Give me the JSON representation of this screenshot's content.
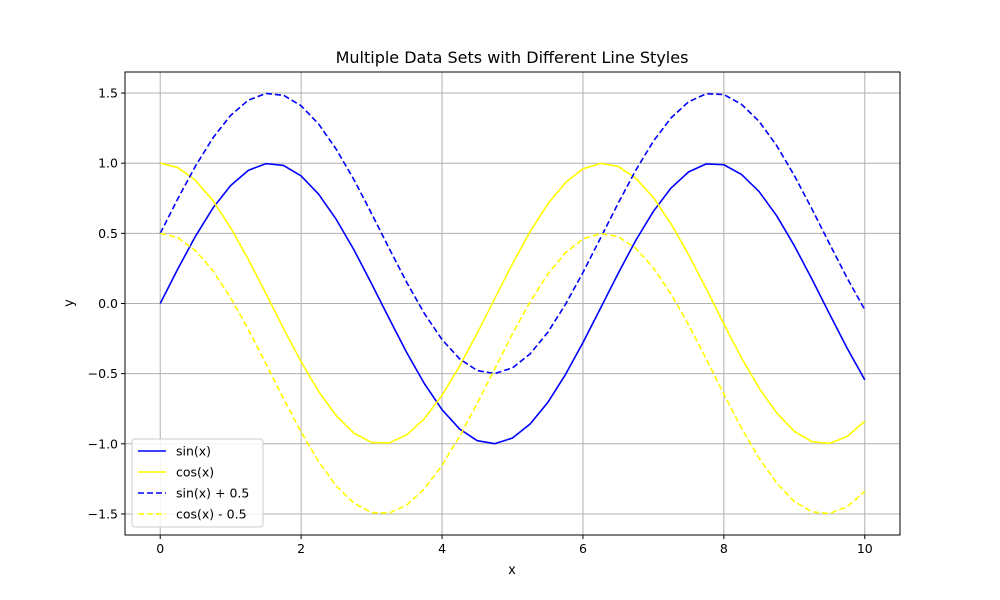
{
  "chart_data": {
    "type": "line",
    "title": "Multiple Data Sets with Different Line Styles",
    "xlabel": "x",
    "ylabel": "y",
    "xlim": [
      -0.5,
      10.5
    ],
    "ylim": [
      -1.65,
      1.65
    ],
    "xticks": [
      0,
      2,
      4,
      6,
      8,
      10
    ],
    "xtick_labels": [
      "0",
      "2",
      "4",
      "6",
      "8",
      "10"
    ],
    "yticks": [
      -1.5,
      -1.0,
      -0.5,
      0.0,
      0.5,
      1.0,
      1.5
    ],
    "ytick_labels": [
      "−1.5",
      "−1.0",
      "−0.5",
      "0.0",
      "0.5",
      "1.0",
      "1.5"
    ],
    "grid": true,
    "legend_position": "lower-left",
    "x": [
      0,
      0.25,
      0.5,
      0.75,
      1,
      1.25,
      1.5,
      1.75,
      2,
      2.25,
      2.5,
      2.75,
      3,
      3.25,
      3.5,
      3.75,
      4,
      4.25,
      4.5,
      4.75,
      5,
      5.25,
      5.5,
      5.75,
      6,
      6.25,
      6.5,
      6.75,
      7,
      7.25,
      7.5,
      7.75,
      8,
      8.25,
      8.5,
      8.75,
      9,
      9.25,
      9.5,
      9.75,
      10
    ],
    "series": [
      {
        "name": "sin(x)",
        "color": "#0000ff",
        "dash": "solid",
        "values": [
          0.0,
          0.247,
          0.479,
          0.682,
          0.841,
          0.949,
          0.997,
          0.984,
          0.909,
          0.778,
          0.598,
          0.382,
          0.141,
          -0.108,
          -0.351,
          -0.572,
          -0.757,
          -0.895,
          -0.978,
          -0.999,
          -0.959,
          -0.859,
          -0.706,
          -0.508,
          -0.279,
          -0.033,
          0.215,
          0.45,
          0.657,
          0.823,
          0.938,
          0.995,
          0.989,
          0.92,
          0.798,
          0.625,
          0.412,
          0.174,
          -0.075,
          -0.319,
          -0.544
        ]
      },
      {
        "name": "cos(x)",
        "color": "#ffff00",
        "dash": "solid",
        "values": [
          1.0,
          0.969,
          0.878,
          0.732,
          0.54,
          0.315,
          0.071,
          -0.178,
          -0.416,
          -0.628,
          -0.801,
          -0.924,
          -0.99,
          -0.994,
          -0.936,
          -0.82,
          -0.654,
          -0.446,
          -0.211,
          0.037,
          0.284,
          0.512,
          0.709,
          0.861,
          0.96,
          0.999,
          0.977,
          0.893,
          0.754,
          0.568,
          0.347,
          0.105,
          -0.146,
          -0.388,
          -0.602,
          -0.78,
          -0.911,
          -0.985,
          -0.997,
          -0.948,
          -0.839
        ]
      },
      {
        "name": "sin(x) + 0.5",
        "color": "#0000ff",
        "dash": "dashed",
        "values": [
          0.5,
          0.747,
          0.979,
          1.182,
          1.341,
          1.449,
          1.497,
          1.484,
          1.409,
          1.278,
          1.098,
          0.882,
          0.641,
          0.392,
          0.149,
          -0.072,
          -0.257,
          -0.395,
          -0.478,
          -0.499,
          -0.459,
          -0.359,
          -0.206,
          -0.008,
          0.221,
          0.467,
          0.715,
          0.95,
          1.157,
          1.323,
          1.438,
          1.495,
          1.489,
          1.42,
          1.298,
          1.125,
          0.912,
          0.674,
          0.425,
          0.181,
          -0.044
        ]
      },
      {
        "name": "cos(x) - 0.5",
        "color": "#ffff00",
        "dash": "dashed",
        "values": [
          0.5,
          0.469,
          0.378,
          0.232,
          0.04,
          -0.185,
          -0.429,
          -0.678,
          -0.916,
          -1.128,
          -1.301,
          -1.424,
          -1.49,
          -1.494,
          -1.436,
          -1.32,
          -1.154,
          -0.946,
          -0.711,
          -0.463,
          -0.216,
          0.012,
          0.209,
          0.361,
          0.46,
          0.499,
          0.477,
          0.393,
          0.254,
          0.068,
          -0.153,
          -0.395,
          -0.646,
          -0.888,
          -1.102,
          -1.28,
          -1.411,
          -1.485,
          -1.497,
          -1.448,
          -1.339
        ]
      }
    ]
  }
}
